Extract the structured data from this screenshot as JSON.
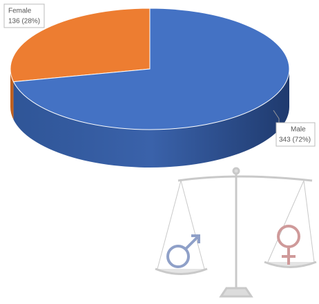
{
  "chart_data": {
    "type": "pie3d",
    "categories": [
      "Female",
      "Male"
    ],
    "values": [
      136,
      343
    ],
    "value_labels": [
      "136 (28%)",
      "343 (72%)"
    ],
    "colors": [
      "#ED7D31",
      "#4472C4"
    ]
  }
}
